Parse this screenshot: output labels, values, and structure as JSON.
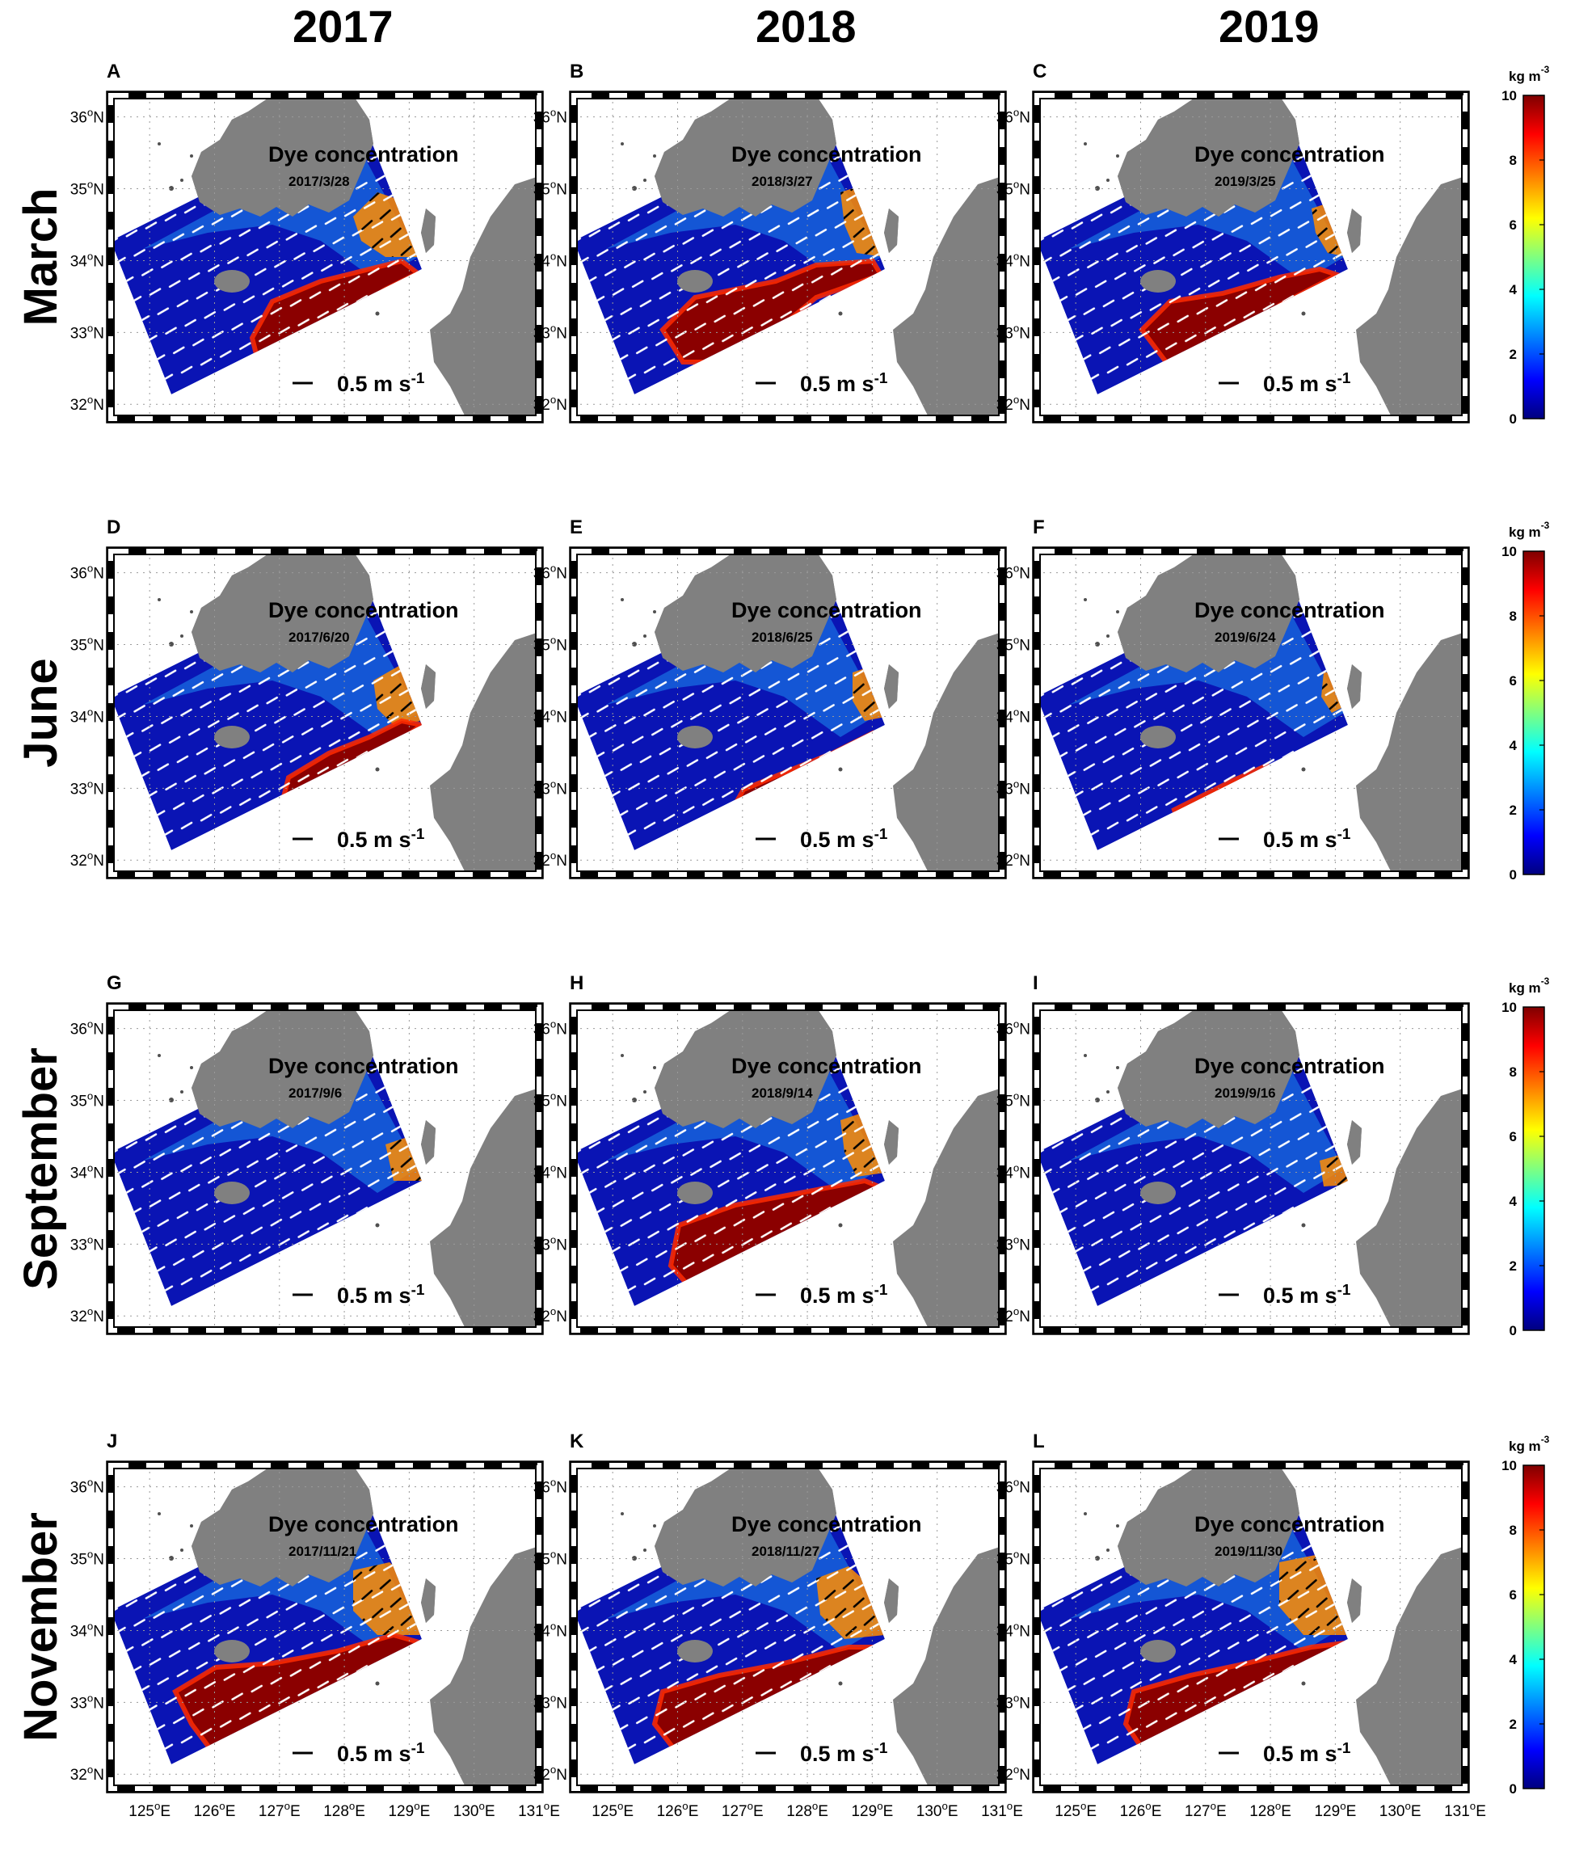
{
  "chart_data": {
    "type": "heatmap",
    "years": [
      "2017",
      "2018",
      "2019"
    ],
    "months": [
      "March",
      "June",
      "September",
      "November"
    ],
    "panel_title": "Dye concentration",
    "scale_label": "0.5 m s-1",
    "lon_ticks": [
      "125°E",
      "126°E",
      "127°E",
      "128°E",
      "129°E",
      "130°E",
      "131°E"
    ],
    "lat_ticks": [
      "32°N",
      "33°N",
      "34°N",
      "35°N",
      "36°N"
    ],
    "colorbar": {
      "unit": "kg m-3",
      "range": [
        0,
        10
      ],
      "ticks": [
        0,
        2,
        4,
        6,
        8,
        10
      ],
      "colormap": [
        "#00007f",
        "#0000ff",
        "#00ffff",
        "#ffff00",
        "#ff0000",
        "#7f0000"
      ]
    },
    "colors": {
      "land": "#808080",
      "water_low": "#0a14b4",
      "dye_high": "#8b0000"
    },
    "panels": [
      {
        "letter": "A",
        "date": "2017/3/28"
      },
      {
        "letter": "B",
        "date": "2018/3/27"
      },
      {
        "letter": "C",
        "date": "2019/3/25"
      },
      {
        "letter": "D",
        "date": "2017/6/20"
      },
      {
        "letter": "E",
        "date": "2018/6/25"
      },
      {
        "letter": "F",
        "date": "2019/6/24"
      },
      {
        "letter": "G",
        "date": "2017/9/6"
      },
      {
        "letter": "H",
        "date": "2018/9/14"
      },
      {
        "letter": "I",
        "date": "2019/9/16"
      },
      {
        "letter": "J",
        "date": "2017/11/21"
      },
      {
        "letter": "K",
        "date": "2018/11/27"
      },
      {
        "letter": "L",
        "date": "2019/11/30"
      }
    ]
  }
}
